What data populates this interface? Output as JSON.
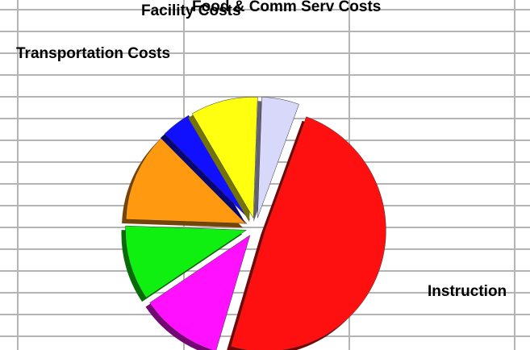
{
  "chart_data": {
    "type": "pie",
    "categories": [
      "Food & Comm Serv Costs",
      "Instruction",
      null,
      null,
      null,
      "Transportation Costs",
      "Facility Costs"
    ],
    "values": [
      5,
      49,
      11,
      10,
      12,
      4,
      9
    ],
    "colors": [
      "#d8d8fa",
      "#ff1010",
      "#ff10ff",
      "#10f010",
      "#ff9a10",
      "#1010ff",
      "#ffff10"
    ],
    "exploded": true
  }
}
